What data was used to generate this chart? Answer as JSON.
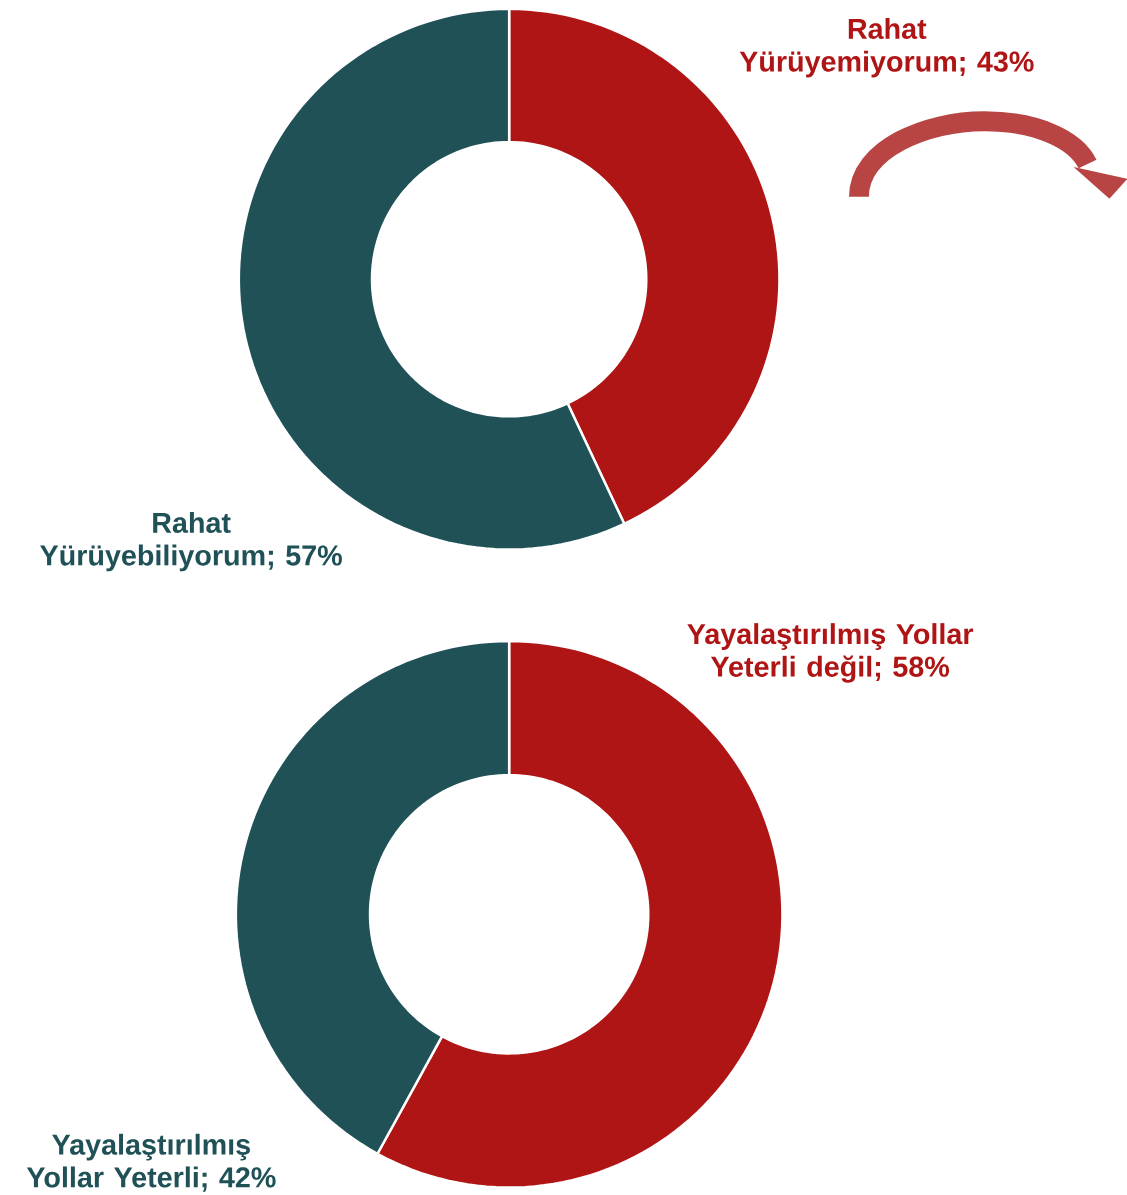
{
  "chart_data": [
    {
      "type": "donut",
      "categories": [
        "Rahat Yürüyemiyorum",
        "Rahat Yürüyebiliyorum"
      ],
      "values": [
        43,
        57
      ],
      "value_labels": [
        "; 43%",
        "; 57%"
      ],
      "colors": [
        "#b01515",
        "#1f5157"
      ]
    },
    {
      "type": "donut",
      "categories": [
        "Yayalaştırılmış Yollar Yeterli değil",
        "Yayalaştırılmış Yollar Yeterli"
      ],
      "values": [
        58,
        42
      ],
      "value_labels": [
        "; 58%",
        "; 42%"
      ],
      "colors": [
        "#b01515",
        "#1f5157"
      ]
    }
  ]
}
